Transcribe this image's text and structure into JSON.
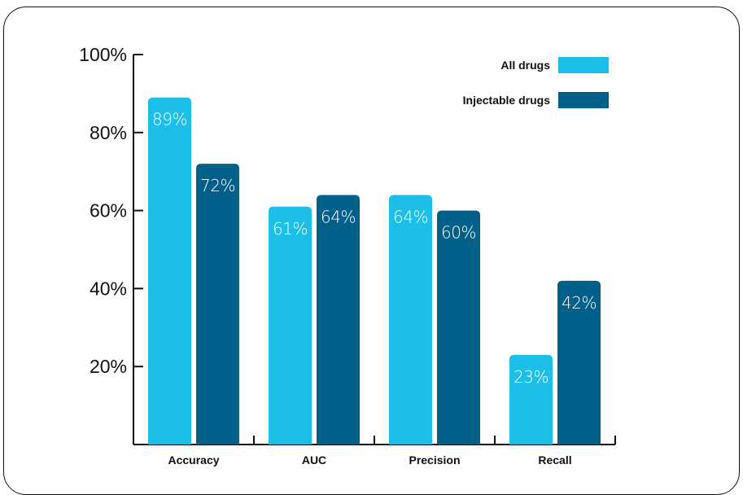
{
  "chart_data": {
    "type": "bar",
    "categories": [
      "Accuracy",
      "AUC",
      "Precision",
      "Recall"
    ],
    "series": [
      {
        "name": "All drugs",
        "values": [
          89,
          61,
          64,
          23
        ],
        "labels": [
          "89%",
          "61%",
          "64%",
          "23%"
        ],
        "color": "#1dbfe9"
      },
      {
        "name": "Injectable drugs",
        "values": [
          72,
          64,
          60,
          42
        ],
        "labels": [
          "72%",
          "64%",
          "60%",
          "42%"
        ],
        "color": "#00608a"
      }
    ],
    "ylim": [
      0,
      100
    ],
    "yticks": [
      20,
      40,
      60,
      80,
      100
    ],
    "ytick_labels": [
      "20%",
      "40%",
      "60%",
      "80%",
      "100%"
    ],
    "legend_position": "top-right",
    "grid": false
  }
}
